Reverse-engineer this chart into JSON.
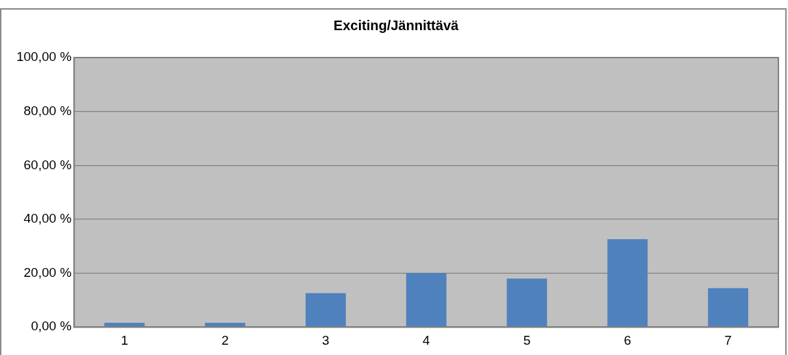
{
  "chart_data": {
    "type": "bar",
    "title": "Exciting/Jännittävä",
    "categories": [
      "1",
      "2",
      "3",
      "4",
      "5",
      "6",
      "7"
    ],
    "values": [
      1.6,
      1.6,
      12.6,
      20,
      18,
      32.6,
      14.4
    ],
    "color": "#4f81bd",
    "ylim": [
      0,
      100
    ],
    "yticks": [
      {
        "value": 0,
        "label": "0,00 %"
      },
      {
        "value": 20,
        "label": "20,00 %"
      },
      {
        "value": 40,
        "label": "40,00 %"
      },
      {
        "value": 60,
        "label": "60,00 %"
      },
      {
        "value": 80,
        "label": "80,00 %"
      },
      {
        "value": 100,
        "label": "100,00 %"
      }
    ],
    "grid": "y",
    "legend": false
  }
}
